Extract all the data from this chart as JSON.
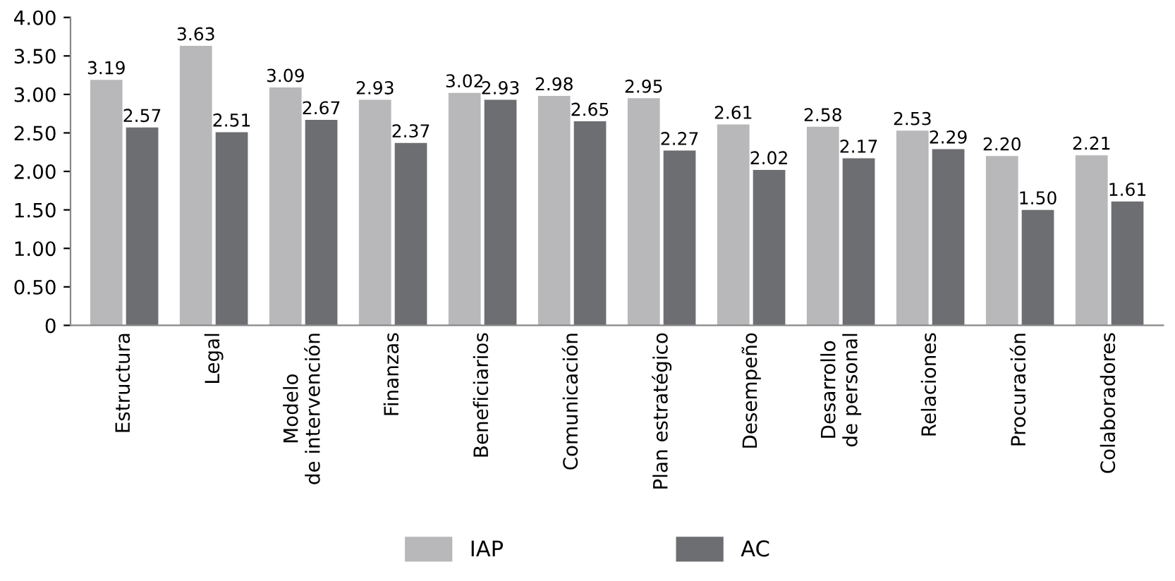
{
  "chart_data": {
    "type": "bar",
    "categories": [
      "Estructura",
      "Legal",
      "Modelo\nde intervención",
      "Finanzas",
      "Beneficiarios",
      "Comunicación",
      "Plan estratégico",
      "Desempeño",
      "Desarrollo\nde personal",
      "Relaciones",
      "Procuración",
      "Colaboradores"
    ],
    "series": [
      {
        "name": "IAP",
        "color": "#b8b8ba",
        "values": [
          3.19,
          3.63,
          3.09,
          2.93,
          3.02,
          2.98,
          2.95,
          2.61,
          2.58,
          2.53,
          2.2,
          2.21
        ],
        "value_labels": [
          "3.19",
          "3.63",
          "3.09",
          "2.93",
          "3.02",
          "2.98",
          "2.95",
          "2.61",
          "2.58",
          "2.53",
          "2.20",
          "2.21"
        ]
      },
      {
        "name": "AC",
        "color": "#6d6e71",
        "values": [
          2.57,
          2.51,
          2.67,
          2.37,
          2.93,
          2.65,
          2.27,
          2.02,
          2.17,
          2.29,
          1.5,
          1.61
        ],
        "value_labels": [
          "2.57",
          "2.51",
          "2.67",
          "2.37",
          "2.93",
          "2.65",
          "2.27",
          "2.02",
          "2.17",
          "2.29",
          "1.50",
          "1.61"
        ]
      }
    ],
    "ylim": [
      0,
      4
    ],
    "yticks": [
      0,
      {
        "value": 0.5,
        "label": "0.50"
      },
      {
        "value": 1,
        "label": "1.00"
      },
      {
        "value": 1.5,
        "label": "1.50"
      },
      {
        "value": 2,
        "label": "2.00"
      },
      {
        "value": 2.5,
        "label": "2.50"
      },
      {
        "value": 3,
        "label": "3.00"
      },
      {
        "value": 3.5,
        "label": "3.50"
      },
      {
        "value": 4,
        "label": "4.00"
      }
    ],
    "grid": false,
    "legend": "bottom"
  }
}
